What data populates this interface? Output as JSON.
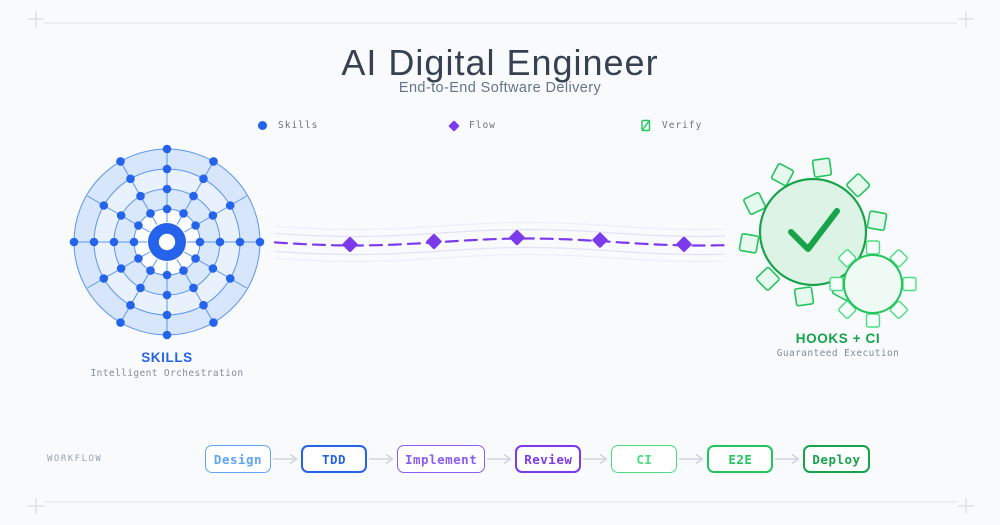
{
  "header": {
    "title": "AI Digital Engineer",
    "subtitle": "End-to-End Software Delivery"
  },
  "legend": {
    "items": [
      {
        "id": "skills",
        "label": "Skills",
        "color": "#2563eb",
        "marker": "dot"
      },
      {
        "id": "flow",
        "label": "Flow",
        "color": "#7c3aed",
        "marker": "diamond"
      },
      {
        "id": "verify",
        "label": "Verify",
        "color": "#22c55e",
        "marker": "checkbox"
      }
    ]
  },
  "skills_diagram": {
    "label": "SKILLS",
    "sublabel": "Intelligent Orchestration",
    "accent": "#2563eb",
    "ring_stroke": "#5b96f0",
    "dot_color": "#2563eb",
    "hub_color": "#2563eb",
    "ring_fills": [
      "#d7e6fa",
      "#e9f1fd",
      "#d9e8fb",
      "#fcfdff"
    ]
  },
  "flow_diagram": {
    "color": "#7c3aed",
    "band_color": "#b49df5",
    "diamond_count": 5
  },
  "hooks_diagram": {
    "label": "HOOKS + CI",
    "sublabel": "Guaranteed Execution",
    "accent": "#16a34a",
    "stroke": "#22c55e",
    "tooth_stroke_small": "#4ade80",
    "fill_big": "#ddf3e6",
    "fill_small": "#f0faf4",
    "tooth_fill": "#e7f8ee"
  },
  "workflow": {
    "label": "WORKFLOW",
    "stages": [
      {
        "label": "Design",
        "color": "#60a5fa",
        "emphasis": false
      },
      {
        "label": "TDD",
        "color": "#2563eb",
        "emphasis": true
      },
      {
        "label": "Implement",
        "color": "#8b5cf6",
        "emphasis": false
      },
      {
        "label": "Review",
        "color": "#7c3aed",
        "emphasis": true
      },
      {
        "label": "CI",
        "color": "#4ade80",
        "emphasis": false
      },
      {
        "label": "E2E",
        "color": "#22c55e",
        "emphasis": true
      },
      {
        "label": "Deploy",
        "color": "#16a34a",
        "emphasis": true
      }
    ]
  }
}
